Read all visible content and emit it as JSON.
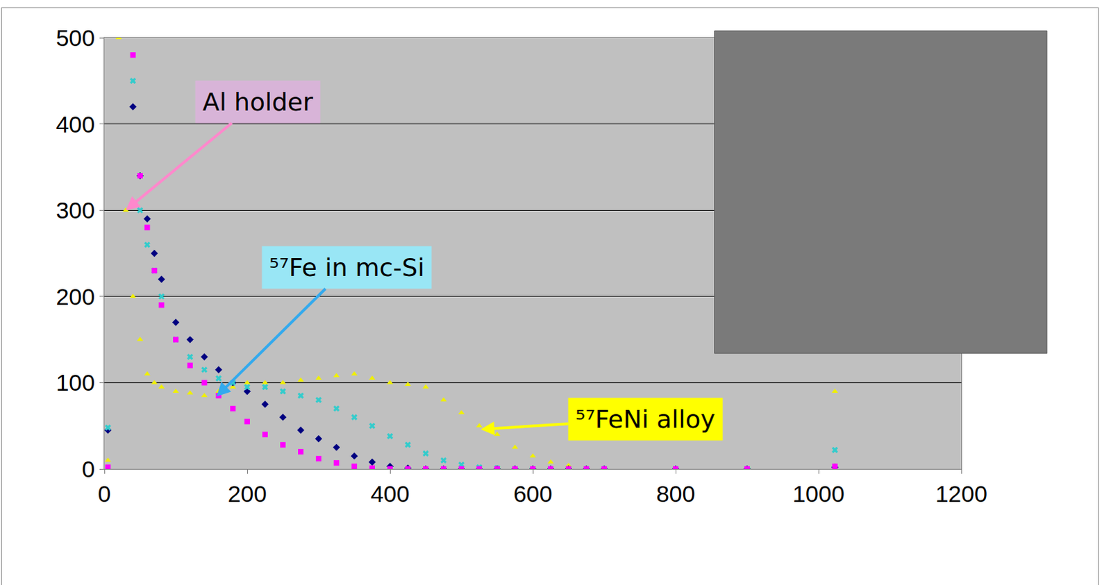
{
  "chart_data": {
    "type": "scatter",
    "x": [
      5,
      20,
      30,
      40,
      50,
      60,
      70,
      80,
      100,
      120,
      140,
      160,
      180,
      200,
      225,
      250,
      275,
      300,
      325,
      350,
      375,
      400,
      425,
      450,
      475,
      500,
      525,
      550,
      575,
      600,
      625,
      650,
      675,
      700,
      800,
      900,
      1023
    ],
    "series": [
      {
        "color": "#f0f000",
        "marker": "triangle-up",
        "values": [
          10,
          500,
          300,
          200,
          150,
          110,
          100,
          95,
          90,
          88,
          85,
          90,
          95,
          100,
          100,
          100,
          103,
          105,
          108,
          110,
          105,
          100,
          98,
          95,
          80,
          65,
          50,
          40,
          25,
          15,
          8,
          4,
          1,
          0,
          0,
          0,
          90
        ]
      },
      {
        "color": "#000080",
        "marker": "diamond",
        "values": [
          45,
          null,
          null,
          420,
          340,
          290,
          250,
          220,
          170,
          150,
          130,
          115,
          100,
          90,
          75,
          60,
          45,
          35,
          25,
          15,
          8,
          3,
          1,
          0,
          0,
          0,
          0,
          0,
          0,
          0,
          0,
          0,
          0,
          0,
          0,
          0,
          2
        ]
      },
      {
        "color": "#33cccc",
        "marker": "x",
        "values": [
          48,
          null,
          null,
          450,
          300,
          260,
          230,
          200,
          150,
          130,
          115,
          105,
          100,
          95,
          95,
          90,
          85,
          80,
          70,
          60,
          50,
          38,
          28,
          18,
          10,
          5,
          2,
          1,
          0,
          0,
          0,
          0,
          0,
          0,
          0,
          0,
          22
        ]
      },
      {
        "color": "#ff00ff",
        "marker": "square",
        "values": [
          2,
          null,
          null,
          480,
          340,
          280,
          230,
          190,
          150,
          120,
          100,
          85,
          70,
          55,
          40,
          28,
          20,
          12,
          7,
          3,
          1,
          0,
          0,
          0,
          0,
          0,
          0,
          0,
          0,
          0,
          0,
          0,
          0,
          0,
          0,
          0,
          3
        ]
      }
    ],
    "xlim": [
      0,
      1200
    ],
    "xticks": [
      0,
      200,
      400,
      600,
      800,
      1000,
      1200
    ],
    "ylim": [
      0,
      500
    ],
    "yticks": [
      0,
      100,
      200,
      300,
      400,
      500
    ],
    "grid": true,
    "annotations": [
      {
        "text": "Al holder",
        "x": 30,
        "y": 300,
        "color": "#ff88cc"
      },
      {
        "text": "⁵⁷Fe in mc-Si",
        "x": 157,
        "y": 84,
        "color": "#33aaee"
      },
      {
        "text": "⁵⁷FeNi alloy",
        "x": 527,
        "y": 46,
        "color": "#ffff00"
      }
    ]
  }
}
